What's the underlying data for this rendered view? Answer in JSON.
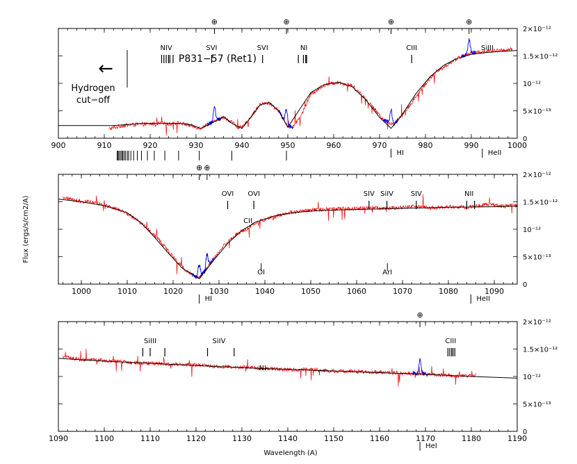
{
  "figure": {
    "title": "P831−57 (Ret1)",
    "ylabel": "Flux (ergs/s/cm2/A)",
    "xlabel": "Wavelength (A)",
    "hydrogen_cutoff_line1": "Hydrogen",
    "hydrogen_cutoff_line2": "cut−off",
    "arrow_glyph": "←",
    "earth_symbol": "⊕",
    "colors": {
      "data": "#ff0000",
      "model": "#000000",
      "geocoronal": "#0000ff",
      "frame": "#000000"
    }
  },
  "chart_data": [
    {
      "type": "line",
      "panel": "top",
      "xlim": [
        900,
        1000
      ],
      "xticks": [
        900,
        910,
        920,
        930,
        940,
        950,
        960,
        970,
        980,
        990,
        1000
      ],
      "ylim": [
        0,
        2e-12
      ],
      "yticks": [
        {
          "value": 0,
          "label": "0"
        },
        {
          "value": 5e-13,
          "label": "5×10⁻¹³"
        },
        {
          "value": 1e-12,
          "label": "10⁻¹²"
        },
        {
          "value": 1.5e-12,
          "label": "1.5×10⁻¹²"
        },
        {
          "value": 2e-12,
          "label": "2×10⁻¹²"
        }
      ],
      "series": [
        {
          "name": "model",
          "x": [
            900,
            912,
            915,
            918,
            920,
            924,
            927,
            929,
            931,
            933,
            936,
            938,
            940,
            942,
            944,
            946,
            948,
            950,
            952,
            955,
            958,
            961,
            964,
            967,
            970,
            972.5,
            975,
            978,
            981,
            984,
            987,
            990,
            993,
            996,
            1000
          ],
          "values": [
            2.3e-13,
            2.3e-13,
            2.5e-13,
            2.7e-13,
            2.7e-13,
            2.7e-13,
            2.7e-13,
            2.4e-13,
            1.8e-13,
            2.6e-13,
            3.9e-13,
            2.6e-13,
            1.8e-13,
            3.9e-13,
            6.1e-13,
            6.5e-13,
            5e-13,
            2e-13,
            4.5e-13,
            8.3e-13,
            9.8e-13,
            1.02e-12,
            9.4e-13,
            7e-13,
            3.8e-13,
            1.8e-13,
            4.4e-13,
            8.2e-13,
            1.12e-12,
            1.33e-12,
            1.46e-12,
            1.53e-12,
            1.56e-12,
            1.58e-12,
            1.6e-12
          ]
        },
        {
          "name": "observed",
          "x": [
            911,
            914,
            917,
            920,
            922,
            924,
            926,
            928,
            930,
            931,
            932,
            934,
            936,
            938,
            939,
            940,
            942,
            944,
            946,
            948,
            950,
            951,
            953,
            955,
            958,
            961,
            964,
            967,
            969,
            971,
            973,
            975,
            977,
            979,
            981,
            984,
            987,
            990,
            993,
            996,
            999
          ],
          "values": [
            1.7e-13,
            2.3e-13,
            2.5e-13,
            2.6e-13,
            2.7e-13,
            2.6e-13,
            2.8e-13,
            2.5e-13,
            2e-13,
            1.8e-13,
            2.3e-13,
            3e-13,
            3.8e-13,
            2.9e-13,
            2e-13,
            1.9e-13,
            4e-13,
            6.2e-13,
            6.4e-13,
            5e-13,
            2.2e-13,
            2e-13,
            4.3e-13,
            8e-13,
            9.7e-13,
            1.02e-12,
            9.6e-13,
            7.2e-13,
            5.2e-13,
            3.3e-13,
            2.5e-13,
            4.2e-13,
            6.5e-13,
            8.8e-13,
            1.1e-12,
            1.3e-12,
            1.46e-12,
            1.55e-12,
            1.58e-12,
            1.6e-12,
            1.62e-12
          ]
        }
      ],
      "line_ids_above": [
        {
          "label": "NIV",
          "x": 923.5,
          "marks": [
            922.5,
            923.0,
            923.5,
            924.0,
            924.3,
            925.0
          ]
        },
        {
          "label": "SVI",
          "x": 933.4,
          "marks": [
            933.4
          ]
        },
        {
          "label": "SVI",
          "x": 944.5,
          "marks": [
            944.5
          ]
        },
        {
          "label": "NI",
          "x": 953.5,
          "marks": [
            952.3,
            953.4,
            953.9,
            954.1
          ]
        },
        {
          "label": "CIII",
          "x": 977.0,
          "marks": [
            977.0
          ]
        },
        {
          "label": "SiIII",
          "x": 993.5,
          "marks": []
        }
      ],
      "line_ids_below": [
        {
          "label": "HI",
          "x": 972.5
        },
        {
          "label": "HeII",
          "x": 992.4
        }
      ],
      "lyman_series_marks": [
        912.8,
        913.0,
        913.2,
        913.5,
        913.8,
        914.0,
        914.3,
        914.6,
        915.0,
        915.3,
        915.8,
        916.4,
        917.2,
        918.1,
        919.4,
        920.9,
        923.2,
        926.2,
        930.7,
        937.8,
        949.7
      ],
      "earth_marks": [
        934.0,
        949.7,
        972.5,
        989.5
      ]
    },
    {
      "type": "line",
      "panel": "middle",
      "xlim": [
        995,
        1095
      ],
      "xticks": [
        1000,
        1010,
        1020,
        1030,
        1040,
        1050,
        1060,
        1070,
        1080,
        1090
      ],
      "ylim": [
        0,
        2e-12
      ],
      "yticks": [
        {
          "value": 0,
          "label": "0"
        },
        {
          "value": 5e-13,
          "label": "5×10⁻¹³"
        },
        {
          "value": 1e-12,
          "label": "10⁻¹²"
        },
        {
          "value": 1.5e-12,
          "label": "1.5×10⁻¹²"
        },
        {
          "value": 2e-12,
          "label": "2×10⁻¹²"
        }
      ],
      "series": [
        {
          "name": "model",
          "x": [
            995,
            1000,
            1005,
            1010,
            1013,
            1016,
            1019,
            1022,
            1025.7,
            1029,
            1032,
            1035,
            1038,
            1042,
            1046,
            1050,
            1055,
            1060,
            1070,
            1080,
            1090,
            1095
          ],
          "values": [
            1.55e-12,
            1.5e-12,
            1.43e-12,
            1.3e-12,
            1.12e-12,
            8.5e-13,
            5.6e-13,
            2.9e-13,
            1e-13,
            4.5e-13,
            7.5e-13,
            9.8e-13,
            1.13e-12,
            1.24e-12,
            1.3e-12,
            1.33e-12,
            1.35e-12,
            1.36e-12,
            1.38e-12,
            1.4e-12,
            1.41e-12,
            1.42e-12
          ]
        },
        {
          "name": "observed",
          "x": [
            996,
            999,
            1002,
            1005,
            1008,
            1011,
            1014,
            1017,
            1020,
            1023,
            1025.7,
            1028,
            1031,
            1034,
            1036,
            1038,
            1041,
            1045,
            1050,
            1055,
            1060,
            1063,
            1067,
            1070,
            1073,
            1076,
            1080,
            1084,
            1088,
            1092,
            1095
          ],
          "values": [
            1.58e-12,
            1.52e-12,
            1.5e-12,
            1.44e-12,
            1.36e-12,
            1.23e-12,
            1.05e-12,
            8e-13,
            5e-13,
            2.3e-13,
            1e-13,
            3.6e-13,
            7e-13,
            9.2e-13,
            1e-12,
            1.12e-12,
            1.2e-12,
            1.3e-12,
            1.35e-12,
            1.37e-12,
            1.38e-12,
            1.4e-12,
            1.38e-12,
            1.4e-12,
            1.42e-12,
            1.39e-12,
            1.41e-12,
            1.4e-12,
            1.45e-12,
            1.42e-12,
            1.43e-12
          ]
        }
      ],
      "line_ids_above": [
        {
          "label": "OVI",
          "x": 1031.9,
          "marks": [
            1031.9
          ]
        },
        {
          "label": "OVI",
          "x": 1037.6,
          "marks": [
            1037.6
          ]
        },
        {
          "label": "CII",
          "x": 1036.3,
          "marks": []
        },
        {
          "label": "SIV",
          "x": 1062.7,
          "marks": [
            1062.7
          ]
        },
        {
          "label": "SiIV",
          "x": 1066.6,
          "marks": [
            1066.6
          ]
        },
        {
          "label": "SIV",
          "x": 1073.0,
          "marks": [
            1073.0
          ]
        },
        {
          "label": "NII",
          "x": 1084.5,
          "marks": [
            1084.0,
            1085.7
          ]
        }
      ],
      "line_ids_below": [
        {
          "label": "OI",
          "x": 1039.2
        },
        {
          "label": "ArI",
          "x": 1066.7
        },
        {
          "label": "HI",
          "x": 1025.7
        },
        {
          "label": "HeII",
          "x": 1084.9
        }
      ],
      "earth_marks": [
        1025.7,
        1027.4
      ]
    },
    {
      "type": "line",
      "panel": "bottom",
      "xlim": [
        1090,
        1190
      ],
      "xticks": [
        1090,
        1100,
        1110,
        1120,
        1130,
        1140,
        1150,
        1160,
        1170,
        1180,
        1190
      ],
      "ylim": [
        0,
        2e-12
      ],
      "yticks": [
        {
          "value": 0,
          "label": "0"
        },
        {
          "value": 5e-13,
          "label": "5×10⁻¹³"
        },
        {
          "value": 1e-12,
          "label": "10⁻¹²"
        },
        {
          "value": 1.5e-12,
          "label": "1.5×10⁻¹²"
        },
        {
          "value": 2e-12,
          "label": "2×10⁻¹²"
        }
      ],
      "series": [
        {
          "name": "model",
          "x": [
            1090,
            1100,
            1110,
            1120,
            1130,
            1140,
            1150,
            1160,
            1170,
            1175,
            1180,
            1190
          ],
          "values": [
            1.33e-12,
            1.28e-12,
            1.24e-12,
            1.2e-12,
            1.16e-12,
            1.13e-12,
            1.1e-12,
            1.07e-12,
            1.04e-12,
            1.02e-12,
            1e-12,
            9.7e-13
          ]
        },
        {
          "name": "observed",
          "x": [
            1091,
            1095,
            1100,
            1105,
            1110,
            1115,
            1120,
            1125,
            1130,
            1135,
            1140,
            1145,
            1150,
            1155,
            1160,
            1165,
            1170,
            1174,
            1178,
            1181
          ],
          "values": [
            1.36e-12,
            1.31e-12,
            1.29e-12,
            1.26e-12,
            1.24e-12,
            1.22e-12,
            1.21e-12,
            1.18e-12,
            1.17e-12,
            1.15e-12,
            1.12e-12,
            1.13e-12,
            1.1e-12,
            1.09e-12,
            1.08e-12,
            1.06e-12,
            1.05e-12,
            1.02e-12,
            1.01e-12,
            1.02e-12
          ]
        }
      ],
      "line_ids_above": [
        {
          "label": "SiIII",
          "x": 1110.0,
          "marks": [
            1108.4,
            1110.0,
            1113.2
          ]
        },
        {
          "label": "SiIV",
          "x": 1125.0,
          "marks": [
            1122.5,
            1128.3
          ]
        },
        {
          "label": "NI",
          "x": 1134.5,
          "marks": []
        },
        {
          "label": "CIII",
          "x": 1175.5,
          "marks": [
            1174.9,
            1175.3,
            1175.7,
            1176.0,
            1176.4
          ]
        }
      ],
      "line_ids_below": [
        {
          "label": "HeI",
          "x": 1168.8
        }
      ],
      "earth_marks": [
        1168.8
      ]
    }
  ]
}
